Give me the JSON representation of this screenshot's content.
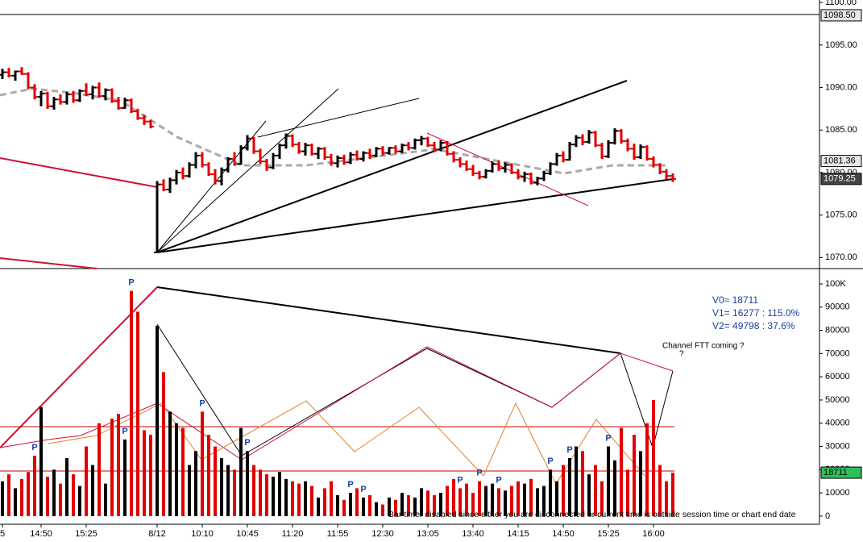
{
  "chart_data": [
    {
      "type": "ohlc",
      "categories": [
        "5",
        null,
        null,
        null,
        null,
        null,
        "14:50",
        null,
        null,
        null,
        null,
        null,
        null,
        "15:25",
        null,
        null,
        null,
        null,
        null,
        null,
        null,
        null,
        null,
        null,
        "8/12",
        null,
        null,
        null,
        null,
        null,
        null,
        "10:10",
        null,
        null,
        null,
        null,
        null,
        null,
        "10:45",
        null,
        null,
        null,
        null,
        null,
        null,
        "11:20",
        null,
        null,
        null,
        null,
        null,
        null,
        "11:55",
        null,
        null,
        null,
        null,
        null,
        null,
        "12:30",
        null,
        null,
        null,
        null,
        null,
        null,
        "13:05",
        null,
        null,
        null,
        null,
        null,
        null,
        "13:40",
        null,
        null,
        null,
        null,
        null,
        null,
        "14:15",
        null,
        null,
        null,
        null,
        null,
        null,
        "14:50",
        null,
        null,
        null,
        null,
        null,
        null,
        "15:25",
        null,
        null,
        null,
        null,
        null,
        null,
        "16:00",
        null,
        null,
        null
      ],
      "ohlc": [
        [
          1091.5,
          1092.2,
          1091.0,
          1091.8
        ],
        [
          1091.8,
          1092.3,
          1091.2,
          1091.4
        ],
        [
          1091.4,
          1092.0,
          1090.8,
          1091.9
        ],
        [
          1091.9,
          1092.4,
          1091.5,
          1091.6
        ],
        [
          1091.6,
          1091.8,
          1089.8,
          1090.0
        ],
        [
          1090.0,
          1090.4,
          1088.6,
          1088.9
        ],
        [
          1088.9,
          1089.6,
          1087.8,
          1089.3
        ],
        [
          1089.3,
          1089.5,
          1087.5,
          1087.8
        ],
        [
          1087.8,
          1088.9,
          1087.4,
          1088.6
        ],
        [
          1088.6,
          1089.2,
          1088.0,
          1088.3
        ],
        [
          1088.3,
          1089.5,
          1088.0,
          1089.2
        ],
        [
          1089.2,
          1089.6,
          1088.2,
          1088.5
        ],
        [
          1088.5,
          1089.8,
          1088.3,
          1089.6
        ],
        [
          1089.6,
          1090.5,
          1089.0,
          1089.2
        ],
        [
          1089.2,
          1090.2,
          1088.6,
          1090.0
        ],
        [
          1090.0,
          1090.6,
          1088.8,
          1089.0
        ],
        [
          1089.0,
          1089.9,
          1088.5,
          1089.7
        ],
        [
          1089.7,
          1089.9,
          1088.2,
          1088.4
        ],
        [
          1088.4,
          1088.9,
          1087.4,
          1087.6
        ],
        [
          1087.6,
          1088.8,
          1087.5,
          1088.5
        ],
        [
          1088.5,
          1088.7,
          1087.0,
          1087.2
        ],
        [
          1087.2,
          1087.5,
          1086.2,
          1086.4
        ],
        [
          1086.4,
          1086.8,
          1085.6,
          1086.0
        ],
        [
          1086.0,
          1086.2,
          1085.2,
          1085.4
        ],
        [
          1070.6,
          1079.0,
          1070.5,
          1078.6
        ],
        [
          1078.6,
          1079.2,
          1077.8,
          1078.0
        ],
        [
          1078.0,
          1079.4,
          1077.6,
          1079.1
        ],
        [
          1079.1,
          1080.3,
          1078.6,
          1080.0
        ],
        [
          1080.0,
          1080.6,
          1079.2,
          1079.6
        ],
        [
          1079.6,
          1081.2,
          1079.4,
          1080.9
        ],
        [
          1080.9,
          1082.4,
          1080.5,
          1082.0
        ],
        [
          1082.0,
          1082.4,
          1080.6,
          1080.9
        ],
        [
          1080.9,
          1081.2,
          1079.6,
          1079.8
        ],
        [
          1079.8,
          1080.4,
          1078.6,
          1079.0
        ],
        [
          1079.0,
          1080.6,
          1078.5,
          1080.3
        ],
        [
          1080.3,
          1081.8,
          1080.0,
          1081.6
        ],
        [
          1081.6,
          1082.4,
          1080.8,
          1081.0
        ],
        [
          1081.0,
          1083.2,
          1080.9,
          1082.9
        ],
        [
          1082.9,
          1084.4,
          1082.6,
          1084.0
        ],
        [
          1084.0,
          1084.2,
          1082.2,
          1082.5
        ],
        [
          1082.5,
          1082.8,
          1081.0,
          1081.3
        ],
        [
          1081.3,
          1081.6,
          1080.2,
          1080.6
        ],
        [
          1080.6,
          1082.3,
          1080.4,
          1082.0
        ],
        [
          1082.0,
          1083.4,
          1081.6,
          1083.2
        ],
        [
          1083.2,
          1084.6,
          1082.8,
          1084.3
        ],
        [
          1084.3,
          1084.5,
          1083.0,
          1083.3
        ],
        [
          1083.3,
          1083.6,
          1082.2,
          1082.5
        ],
        [
          1082.5,
          1083.5,
          1082.0,
          1083.2
        ],
        [
          1083.2,
          1083.4,
          1082.0,
          1082.2
        ],
        [
          1082.2,
          1083.0,
          1081.6,
          1082.8
        ],
        [
          1082.8,
          1083.0,
          1081.5,
          1081.8
        ],
        [
          1081.8,
          1082.2,
          1080.8,
          1081.1
        ],
        [
          1081.1,
          1082.0,
          1080.6,
          1081.7
        ],
        [
          1081.7,
          1082.1,
          1080.9,
          1081.2
        ],
        [
          1081.2,
          1082.4,
          1081.0,
          1082.1
        ],
        [
          1082.1,
          1082.6,
          1081.4,
          1081.6
        ],
        [
          1081.6,
          1082.5,
          1081.3,
          1082.3
        ],
        [
          1082.3,
          1082.8,
          1081.6,
          1082.0
        ],
        [
          1082.0,
          1083.0,
          1081.8,
          1082.8
        ],
        [
          1082.8,
          1083.1,
          1082.0,
          1082.3
        ],
        [
          1082.3,
          1083.0,
          1082.1,
          1082.9
        ],
        [
          1082.9,
          1083.2,
          1082.2,
          1082.5
        ],
        [
          1082.5,
          1083.4,
          1082.3,
          1083.2
        ],
        [
          1083.2,
          1083.6,
          1082.6,
          1082.9
        ],
        [
          1082.9,
          1084.0,
          1082.7,
          1083.8
        ],
        [
          1083.8,
          1084.3,
          1083.2,
          1084.0
        ],
        [
          1084.0,
          1084.2,
          1083.0,
          1083.2
        ],
        [
          1083.2,
          1083.6,
          1082.4,
          1082.7
        ],
        [
          1082.7,
          1083.8,
          1082.5,
          1083.5
        ],
        [
          1083.5,
          1083.7,
          1082.0,
          1082.2
        ],
        [
          1082.2,
          1082.5,
          1081.2,
          1081.5
        ],
        [
          1081.5,
          1081.8,
          1080.6,
          1081.0
        ],
        [
          1081.0,
          1081.4,
          1080.2,
          1080.4
        ],
        [
          1080.4,
          1080.9,
          1079.6,
          1079.9
        ],
        [
          1079.9,
          1080.2,
          1079.2,
          1079.5
        ],
        [
          1079.5,
          1080.4,
          1079.3,
          1080.2
        ],
        [
          1080.2,
          1081.3,
          1080.0,
          1081.0
        ],
        [
          1081.0,
          1081.4,
          1080.2,
          1080.5
        ],
        [
          1080.5,
          1081.2,
          1080.0,
          1080.9
        ],
        [
          1080.9,
          1081.1,
          1079.8,
          1080.0
        ],
        [
          1080.0,
          1080.4,
          1079.2,
          1079.5
        ],
        [
          1079.5,
          1080.1,
          1078.9,
          1079.8
        ],
        [
          1079.8,
          1080.0,
          1078.6,
          1078.8
        ],
        [
          1078.8,
          1079.5,
          1078.5,
          1079.3
        ],
        [
          1079.3,
          1080.2,
          1079.0,
          1079.9
        ],
        [
          1079.9,
          1081.2,
          1079.7,
          1081.0
        ],
        [
          1081.0,
          1082.3,
          1080.8,
          1082.0
        ],
        [
          1082.0,
          1082.5,
          1081.2,
          1081.5
        ],
        [
          1081.5,
          1083.6,
          1081.4,
          1083.3
        ],
        [
          1083.3,
          1084.4,
          1083.0,
          1084.1
        ],
        [
          1084.1,
          1084.5,
          1083.2,
          1083.6
        ],
        [
          1083.6,
          1085.0,
          1083.4,
          1084.7
        ],
        [
          1084.7,
          1084.9,
          1083.0,
          1083.2
        ],
        [
          1083.2,
          1083.5,
          1081.6,
          1081.9
        ],
        [
          1081.9,
          1083.8,
          1081.7,
          1083.5
        ],
        [
          1083.5,
          1085.2,
          1083.3,
          1084.9
        ],
        [
          1084.9,
          1085.1,
          1083.4,
          1083.7
        ],
        [
          1083.7,
          1084.0,
          1082.5,
          1082.8
        ],
        [
          1082.8,
          1083.4,
          1081.5,
          1081.8
        ],
        [
          1081.8,
          1083.3,
          1081.6,
          1083.0
        ],
        [
          1083.0,
          1083.2,
          1081.4,
          1081.6
        ],
        [
          1081.6,
          1081.9,
          1080.6,
          1080.9
        ],
        [
          1080.9,
          1081.1,
          1079.8,
          1080.1
        ],
        [
          1080.1,
          1080.4,
          1079.2,
          1079.6
        ],
        [
          1079.6,
          1079.9,
          1078.9,
          1079.25
        ]
      ],
      "up_color": "#000000",
      "down_color": "#e00000",
      "ylim": [
        1068.7,
        1100.3
      ],
      "yticks": [
        {
          "value": 1070,
          "label": "1070.00"
        },
        {
          "value": 1075,
          "label": "1075.00"
        },
        {
          "value": 1080,
          "label": "1080.00"
        },
        {
          "value": 1085,
          "label": "1085.00"
        },
        {
          "value": 1090,
          "label": "1090.00"
        },
        {
          "value": 1095,
          "label": "1095.00"
        },
        {
          "value": 1100,
          "label": "1100.00"
        }
      ],
      "price_tags": [
        {
          "value": 1098.5,
          "label": "1098.50"
        },
        {
          "value": 1081.36,
          "label": "1081.36"
        },
        {
          "value": 1079.25,
          "label": "1079.25"
        }
      ]
    },
    {
      "type": "volume",
      "values": [
        15000,
        18000,
        12000,
        16000,
        19000,
        26000,
        47000,
        17000,
        20000,
        14000,
        25000,
        18000,
        13000,
        30000,
        22000,
        40000,
        14000,
        42000,
        44000,
        33000,
        97000,
        88000,
        37000,
        35000,
        82000,
        62000,
        45000,
        40000,
        38000,
        22000,
        28000,
        45000,
        35000,
        30000,
        25000,
        22000,
        20000,
        38000,
        28000,
        22000,
        20000,
        18000,
        17000,
        19000,
        16000,
        15000,
        14000,
        15000,
        13000,
        8000,
        12000,
        15000,
        9000,
        7000,
        10000,
        12000,
        8000,
        9000,
        6000,
        5000,
        8000,
        7000,
        10000,
        9000,
        8000,
        12000,
        11000,
        9000,
        10000,
        13000,
        16000,
        12000,
        14000,
        10000,
        15000,
        13000,
        14000,
        12000,
        11000,
        13000,
        15000,
        14000,
        16000,
        12000,
        13000,
        20000,
        15000,
        22000,
        25000,
        30000,
        28000,
        18000,
        22000,
        15000,
        30000,
        24000,
        38000,
        20000,
        35000,
        28000,
        40000,
        50000,
        22000,
        15000,
        18711
      ],
      "ylim": [
        -3500,
        105900
      ],
      "yticks": [
        0,
        10000,
        20000,
        30000,
        40000,
        50000,
        60000,
        70000,
        80000,
        90000,
        {
          "value": 100000,
          "label": "100K"
        }
      ],
      "last_tag": 18711,
      "p_label": "P",
      "p_bars": [
        5,
        20,
        19,
        31,
        38,
        54,
        56,
        71,
        74,
        77,
        85,
        88,
        94
      ],
      "annotations": [
        "V0≈ 18711",
        "V1= 16277 : 115.0%",
        "V2= 49798 : 37.6%",
        "Channel FTT coming ?",
        "?"
      ],
      "footer": "Bar timer disabled since either you are disconnected or current time is outside session time or chart end date"
    }
  ]
}
